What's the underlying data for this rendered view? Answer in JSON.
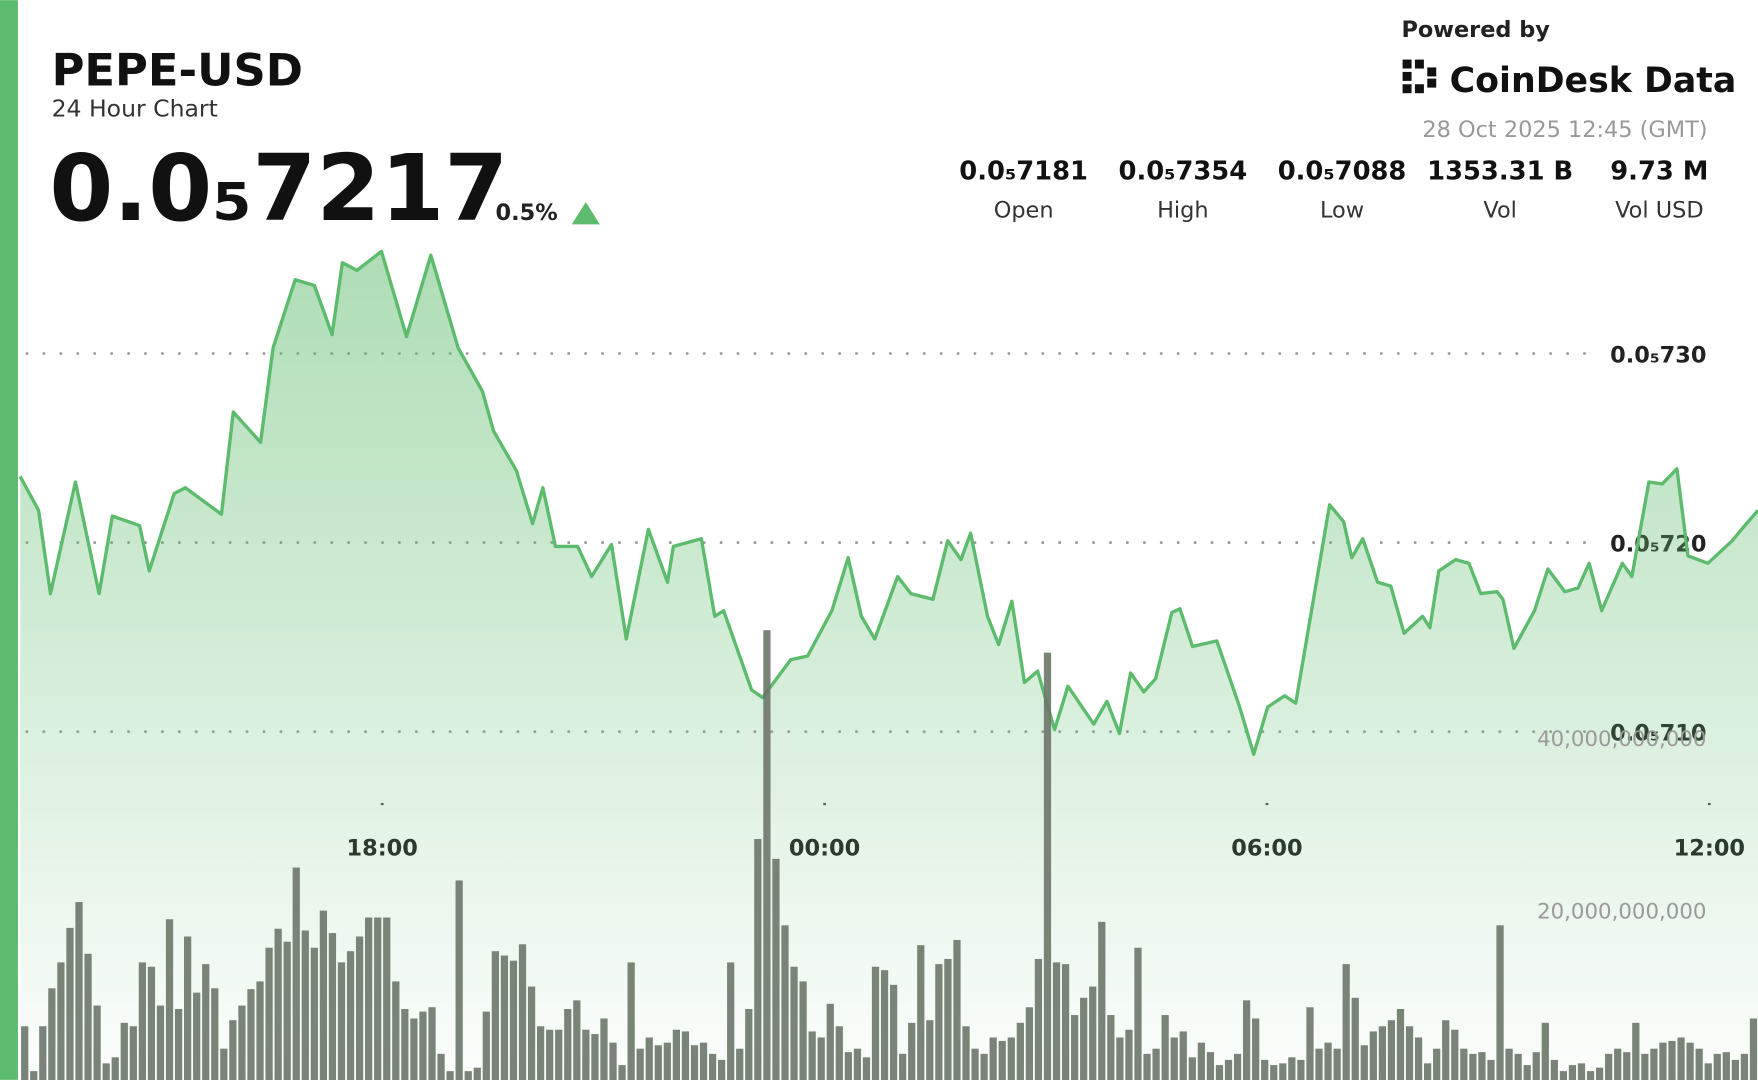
{
  "header": {
    "symbol": "PEPE-USD",
    "subtitle": "24 Hour Chart",
    "price": "0.0₅7217",
    "change": "0.5%",
    "powered_by": "Powered by",
    "brand": "CoinDesk Data",
    "timestamp": "28 Oct 2025 12:45 (GMT)"
  },
  "stats": [
    {
      "value": "0.0₅7181",
      "label": "Open"
    },
    {
      "value": "0.0₅7354",
      "label": "High"
    },
    {
      "value": "0.0₅7088",
      "label": "Low"
    },
    {
      "value": "1353.31 B",
      "label": "Vol"
    },
    {
      "value": "9.73 M",
      "label": "Vol USD"
    }
  ],
  "chart_data": [
    {
      "type": "area",
      "color": "#5dbb6d",
      "x": [
        13.09,
        13.34,
        13.5,
        13.84,
        14.16,
        14.34,
        14.71,
        14.84,
        15.18,
        15.33,
        15.82,
        15.98,
        16.35,
        16.52,
        16.82,
        17.08,
        17.32,
        17.46,
        17.66,
        17.99,
        18.33,
        18.66,
        19.03,
        19.36,
        19.51,
        19.82,
        20.04,
        20.18,
        20.35,
        20.65,
        20.84,
        21.11,
        21.31,
        21.61,
        21.87,
        21.95,
        22.33,
        22.51,
        22.63,
        23.01,
        23.16,
        23.54,
        23.77,
        24.1,
        24.32,
        24.5,
        24.68,
        24.99,
        25.17,
        25.47,
        25.67,
        25.85,
        25.98,
        26.21,
        26.36,
        26.54,
        26.71,
        26.89,
        27.12,
        27.3,
        27.65,
        27.83,
        28.0,
        28.15,
        28.33,
        28.49,
        28.71,
        28.82,
        28.99,
        29.32,
        29.63,
        29.82,
        30.01,
        30.24,
        30.39,
        30.85,
        31.04,
        31.15,
        31.3,
        31.5,
        31.68,
        31.86,
        32.11,
        32.21,
        32.33,
        32.56,
        32.74,
        32.9,
        33.12,
        33.2,
        33.35,
        33.63,
        33.81,
        34.04,
        34.22,
        34.37,
        34.54,
        34.82,
        34.95,
        35.18,
        35.36,
        35.56,
        35.71,
        35.98,
        36.31,
        36.46,
        36.66
      ],
      "values": [
        7.235e-06,
        7.217e-06,
        7.173e-06,
        7.232e-06,
        7.173e-06,
        7.214e-06,
        7.209e-06,
        7.185e-06,
        7.226e-06,
        7.229e-06,
        7.215e-06,
        7.269e-06,
        7.253e-06,
        7.303e-06,
        7.339e-06,
        7.336e-06,
        7.31e-06,
        7.348e-06,
        7.344e-06,
        7.354e-06,
        7.309e-06,
        7.352e-06,
        7.303e-06,
        7.28e-06,
        7.259e-06,
        7.238e-06,
        7.21e-06,
        7.229e-06,
        7.198e-06,
        7.198e-06,
        7.182e-06,
        7.199e-06,
        7.149e-06,
        7.207e-06,
        7.179e-06,
        7.198e-06,
        7.202e-06,
        7.161e-06,
        7.164e-06,
        7.122e-06,
        7.118e-06,
        7.138e-06,
        7.14e-06,
        7.164e-06,
        7.192e-06,
        7.161e-06,
        7.149e-06,
        7.182e-06,
        7.173e-06,
        7.17e-06,
        7.201e-06,
        7.191e-06,
        7.205e-06,
        7.161e-06,
        7.146e-06,
        7.169e-06,
        7.126e-06,
        7.132e-06,
        7.101e-06,
        7.124e-06,
        7.104e-06,
        7.116e-06,
        7.099e-06,
        7.131e-06,
        7.121e-06,
        7.128e-06,
        7.163e-06,
        7.165e-06,
        7.145e-06,
        7.148e-06,
        7.113e-06,
        7.088e-06,
        7.113e-06,
        7.119e-06,
        7.115e-06,
        7.22e-06,
        7.211e-06,
        7.192e-06,
        7.202e-06,
        7.179e-06,
        7.177e-06,
        7.152e-06,
        7.161e-06,
        7.155e-06,
        7.185e-06,
        7.191e-06,
        7.189e-06,
        7.173e-06,
        7.174e-06,
        7.17e-06,
        7.144e-06,
        7.164e-06,
        7.186e-06,
        7.174e-06,
        7.176e-06,
        7.189e-06,
        7.164e-06,
        7.189e-06,
        7.182e-06,
        7.232e-06,
        7.231e-06,
        7.239e-06,
        7.193e-06,
        7.189e-06,
        7.201e-06,
        7.208e-06,
        7.217e-06
      ],
      "xlim": [
        13.09,
        36.66
      ],
      "xticks": [
        {
          "value": 18,
          "label": "18:00"
        },
        {
          "value": 24,
          "label": "00:00"
        },
        {
          "value": 30,
          "label": "06:00"
        },
        {
          "value": 36,
          "label": "12:00"
        }
      ],
      "ylim": [
        7.07e-06,
        7.36e-06
      ],
      "yticks": [
        {
          "value": 7.1e-06,
          "label": "0.0₅710"
        },
        {
          "value": 7.2e-06,
          "label": "0.0₅720"
        },
        {
          "value": 7.3e-06,
          "label": "0.0₅730"
        }
      ],
      "grid": true
    },
    {
      "type": "bar",
      "color": "#6b7669",
      "categories": [
        null,
        null,
        null,
        null,
        null,
        null,
        null,
        null,
        null,
        null,
        null,
        null,
        null,
        null,
        null,
        null,
        null,
        null,
        null,
        null,
        null,
        null,
        null,
        null,
        null,
        null,
        null,
        null,
        null,
        null,
        null,
        null,
        null,
        null,
        null,
        null,
        null,
        null,
        null,
        null,
        null,
        null,
        null,
        null,
        null,
        null,
        null,
        null,
        null,
        null,
        null,
        null,
        null,
        null,
        null,
        null,
        null,
        null,
        null,
        null,
        null,
        null,
        null,
        null,
        null,
        null,
        null,
        null,
        null,
        null,
        null,
        null,
        null,
        null,
        null,
        null,
        null,
        null,
        null,
        null,
        null,
        null,
        null,
        null,
        null,
        null,
        null,
        null,
        null,
        null,
        null,
        null,
        null,
        null,
        null,
        null,
        null,
        null,
        null,
        null,
        null,
        null,
        null,
        null,
        null,
        null,
        null,
        null,
        null,
        null,
        null,
        null,
        null,
        null,
        null,
        null,
        null,
        null,
        null,
        null,
        null,
        null,
        null,
        null,
        null,
        null,
        null,
        null,
        null,
        null,
        null,
        null,
        null,
        null,
        null,
        null,
        null,
        null,
        null,
        null,
        null,
        null,
        null,
        null,
        null,
        null,
        null,
        null,
        null,
        null,
        null,
        null,
        null,
        null,
        null,
        null,
        null,
        null,
        null,
        null,
        null,
        null,
        null,
        null,
        null,
        null,
        null,
        null,
        null,
        null,
        null,
        null,
        null,
        null,
        null,
        null,
        null,
        null,
        null,
        null,
        null,
        null,
        null,
        null,
        null,
        null,
        null,
        null,
        null,
        null,
        null,
        null
      ],
      "values": [
        6600000000.0,
        1400000000.0,
        6600000000.0,
        11000000000.0,
        14000000000.0,
        18000000000.0,
        21000000000.0,
        15000000000.0,
        9000000000.0,
        2300000000.0,
        3000000000.0,
        7000000000.0,
        6600000000.0,
        14000000000.0,
        13500000000.0,
        9000000000.0,
        19000000000.0,
        8600000000.0,
        17000000000.0,
        10500000000.0,
        13800000000.0,
        11000000000.0,
        4000000000.0,
        7300000000.0,
        9000000000.0,
        10900000000.0,
        11800000000.0,
        15700000000.0,
        17900000000.0,
        16400000000.0,
        25000000000.0,
        17700000000.0,
        15700000000.0,
        20000000000.0,
        17400000000.0,
        14000000000.0,
        15300000000.0,
        17000000000.0,
        19200000000.0,
        19200000000.0,
        19200000000.0,
        11800000000.0,
        8600000000.0,
        7500000000.0,
        8300000000.0,
        8800000000.0,
        3400000000.0,
        1400000000.0,
        23500000000.0,
        1400000000.0,
        1800000000.0,
        8300000000.0,
        15300000000.0,
        14800000000.0,
        14200000000.0,
        16100000000.0,
        11200000000.0,
        6600000000.0,
        6200000000.0,
        6200000000.0,
        8600000000.0,
        9600000000.0,
        6200000000.0,
        5700000000.0,
        7500000000.0,
        4700000000.0,
        2100000000.0,
        14000000000.0,
        4000000000.0,
        5300000000.0,
        4400000000.0,
        4700000000.0,
        6200000000.0,
        6000000000.0,
        4400000000.0,
        4700000000.0,
        3400000000.0,
        2700000000.0,
        14000000000.0,
        4000000000.0,
        8600000000.0,
        28300000000.0,
        52500000000.0,
        26000000000.0,
        18300000000.0,
        13500000000.0,
        11800000000.0,
        6000000000.0,
        5300000000.0,
        9200000000.0,
        6600000000.0,
        3600000000.0,
        4000000000.0,
        3000000000.0,
        13500000000.0,
        13100000000.0,
        11400000000.0,
        3400000000.0,
        7000000000.0,
        16000000000.0,
        7300000000.0,
        13800000000.0,
        14400000000.0,
        16600000000.0,
        6600000000.0,
        4000000000.0,
        3400000000.0,
        5300000000.0,
        4900000000.0,
        5300000000.0,
        7000000000.0,
        8800000000.0,
        14400000000.0,
        49900000000.0,
        14000000000.0,
        13800000000.0,
        7900000000.0,
        9900000000.0,
        11200000000.0,
        18700000000.0,
        7900000000.0,
        5300000000.0,
        6200000000.0,
        15700000000.0,
        3400000000.0,
        4000000000.0,
        7900000000.0,
        5300000000.0,
        6000000000.0,
        3000000000.0,
        4700000000.0,
        3600000000.0,
        2100000000.0,
        2700000000.0,
        3400000000.0,
        9600000000.0,
        7500000000.0,
        2700000000.0,
        2100000000.0,
        2300000000.0,
        3000000000.0,
        2700000000.0,
        8800000000.0,
        4000000000.0,
        4700000000.0,
        4000000000.0,
        13800000000.0,
        9900000000.0,
        4400000000.0,
        6000000000.0,
        6600000000.0,
        7300000000.0,
        8600000000.0,
        6600000000.0,
        5300000000.0,
        2300000000.0,
        4000000000.0,
        7300000000.0,
        6200000000.0,
        4000000000.0,
        3400000000.0,
        3600000000.0,
        2700000000.0,
        18300000000.0,
        4000000000.0,
        3400000000.0,
        2100000000.0,
        3600000000.0,
        7000000000.0,
        2700000000.0,
        1400000000.0,
        2100000000.0,
        2300000000.0,
        1400000000.0,
        1800000000.0,
        3400000000.0,
        4000000000.0,
        3600000000.0,
        7000000000.0,
        3400000000.0,
        4000000000.0,
        4700000000.0,
        4900000000.0,
        5300000000.0,
        4700000000.0,
        4000000000.0,
        2300000000.0,
        3400000000.0,
        3600000000.0,
        2700000000.0,
        3400000000.0,
        7500000000.0
      ],
      "ylim": [
        0,
        125000000000.0
      ],
      "yticks": [
        {
          "value": 20000000000.0,
          "label": "20,000,000,000"
        },
        {
          "value": 40000000000.0,
          "label": "40,000,000,000"
        }
      ]
    }
  ]
}
